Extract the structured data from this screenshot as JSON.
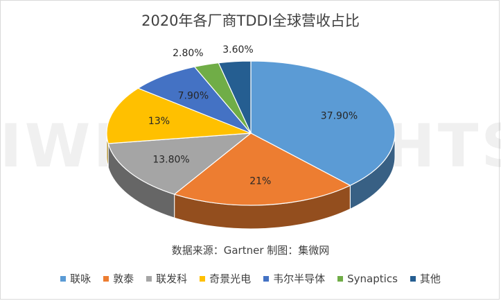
{
  "chart_data": {
    "type": "pie",
    "title": "2020年各厂商TDDI全球营收占比",
    "source": "数据来源：Gartner  制图：集微网",
    "watermark": "JIWEI INSIGHTS",
    "legend_position": "bottom",
    "slices": [
      {
        "name": "联咏",
        "value": 37.9,
        "label": "37.90%",
        "color": "#5b9bd5"
      },
      {
        "name": "敦泰",
        "value": 21.0,
        "label": "21%",
        "color": "#ed7d31"
      },
      {
        "name": "联发科",
        "value": 13.8,
        "label": "13.80%",
        "color": "#a5a5a5"
      },
      {
        "name": "奇景光电",
        "value": 13.0,
        "label": "13%",
        "color": "#ffc000"
      },
      {
        "name": "韦尔半导体",
        "value": 7.9,
        "label": "7.90%",
        "color": "#4472c4"
      },
      {
        "name": "Synaptics",
        "value": 2.8,
        "label": "2.80%",
        "color": "#70ad47"
      },
      {
        "name": "其他",
        "value": 3.6,
        "label": "3.60%",
        "color": "#255e91"
      }
    ]
  }
}
